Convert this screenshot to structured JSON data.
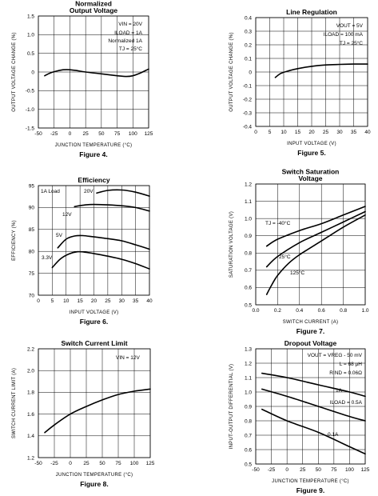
{
  "chart_data": [
    {
      "type": "line",
      "title": "Normalized\nOutput Voltage",
      "figure_label": "Figure 4.",
      "xlabel": "JUNCTION TEMPERATURE (°C)",
      "ylabel": "OUTPUT VOLTAGE CHANGE (%)",
      "xlim": [
        -50,
        125
      ],
      "ylim": [
        -1.5,
        1.5
      ],
      "xticks": [
        -50,
        -25,
        0,
        25,
        50,
        75,
        100,
        125
      ],
      "yticks": [
        -1.5,
        -1.0,
        -0.5,
        0,
        0.5,
        1.0,
        1.5
      ],
      "ytick_labels": [
        "-1.5",
        "-1.0",
        "-0.5",
        "0",
        "0.5",
        "1.0",
        "1.5"
      ],
      "grid": true,
      "annotations": [
        "VIN = 20V",
        "ILOAD = 1A",
        "Normalized 1A",
        "TJ = 25°C"
      ],
      "series": [
        {
          "name": "",
          "x": [
            -40,
            -30,
            -20,
            -10,
            0,
            10,
            25,
            50,
            75,
            90,
            100,
            110,
            125
          ],
          "y": [
            -0.1,
            -0.02,
            0.03,
            0.06,
            0.06,
            0.04,
            0.0,
            -0.05,
            -0.1,
            -0.12,
            -0.1,
            -0.04,
            0.08
          ]
        }
      ]
    },
    {
      "type": "line",
      "title": "Line Regulation",
      "figure_label": "Figure 5.",
      "xlabel": "INPUT VOLTAGE (V)",
      "ylabel": "OUTPUT VOLTAGE CHANGE (%)",
      "xlim": [
        0,
        40
      ],
      "ylim": [
        -0.4,
        0.4
      ],
      "xticks": [
        0,
        5,
        10,
        15,
        20,
        25,
        30,
        35,
        40
      ],
      "yticks": [
        -0.4,
        -0.3,
        -0.2,
        -0.1,
        0,
        0.1,
        0.2,
        0.3,
        0.4
      ],
      "ytick_labels": [
        "-0.4",
        "-0.3",
        "-0.2",
        "-0.1",
        "0",
        "0.1",
        "0.2",
        "0.3",
        "0.4"
      ],
      "grid": true,
      "annotations": [
        "VOUT = 5V",
        "ILOAD = 100 mA",
        "TJ = 25°C"
      ],
      "series": [
        {
          "name": "",
          "x": [
            7,
            9,
            12,
            15,
            20,
            25,
            30,
            35,
            40
          ],
          "y": [
            -0.04,
            -0.01,
            0.01,
            0.025,
            0.042,
            0.052,
            0.056,
            0.058,
            0.058
          ]
        }
      ]
    },
    {
      "type": "line",
      "title": "Efficiency",
      "figure_label": "Figure 6.",
      "xlabel": "INPUT VOLTAGE (V)",
      "ylabel": "EFFICIENCY (%)",
      "xlim": [
        0,
        40
      ],
      "ylim": [
        70,
        95
      ],
      "xticks": [
        0,
        5,
        10,
        15,
        20,
        25,
        30,
        35,
        40
      ],
      "yticks": [
        70,
        75,
        80,
        85,
        90,
        95
      ],
      "ytick_labels": [
        "70",
        "75",
        "80",
        "85",
        "90",
        "95"
      ],
      "grid": true,
      "annotations": [
        "1A Load"
      ],
      "series": [
        {
          "name": "20V",
          "x": [
            21,
            25,
            30,
            35,
            40
          ],
          "y": [
            93.3,
            93.9,
            94.0,
            93.5,
            92.6
          ]
        },
        {
          "name": "12V",
          "x": [
            13,
            17,
            20,
            25,
            30,
            35,
            40
          ],
          "y": [
            90.2,
            90.6,
            90.7,
            90.6,
            90.4,
            90.0,
            89.2
          ]
        },
        {
          "name": "5V",
          "x": [
            7,
            10,
            13,
            16,
            20,
            25,
            30,
            35,
            40
          ],
          "y": [
            80.8,
            82.8,
            83.5,
            83.6,
            83.3,
            82.9,
            82.4,
            81.5,
            80.5
          ]
        },
        {
          "name": "3.3V",
          "x": [
            5,
            8,
            11,
            14,
            17,
            20,
            25,
            30,
            35,
            40
          ],
          "y": [
            76.3,
            78.3,
            79.4,
            79.9,
            79.8,
            79.5,
            78.9,
            78.2,
            77.2,
            76.0
          ]
        }
      ]
    },
    {
      "type": "line",
      "title": "Switch Saturation\nVoltage",
      "figure_label": "Figure 7.",
      "xlabel": "SWITCH CURRENT (A)",
      "ylabel": "SATURATION VOLTAGE (V)",
      "xlim": [
        0,
        1.0
      ],
      "ylim": [
        0.5,
        1.2
      ],
      "xticks": [
        0,
        0.2,
        0.4,
        0.6,
        0.8,
        1.0
      ],
      "xtick_labels": [
        "0.0",
        "0.2",
        "0.4",
        "0.6",
        "0.8",
        "1.0"
      ],
      "yticks": [
        0.5,
        0.6,
        0.7,
        0.8,
        0.9,
        1.0,
        1.1,
        1.2
      ],
      "ytick_labels": [
        "0.5",
        "0.6",
        "0.7",
        "0.8",
        "0.9",
        "1.0",
        "1.1",
        "1.2"
      ],
      "grid": true,
      "series": [
        {
          "name": "TJ = -40°C",
          "x": [
            0.1,
            0.2,
            0.4,
            0.6,
            0.8,
            1.0
          ],
          "y": [
            0.84,
            0.88,
            0.93,
            0.97,
            1.02,
            1.07
          ]
        },
        {
          "name": "25°C",
          "x": [
            0.1,
            0.2,
            0.4,
            0.6,
            0.8,
            1.0
          ],
          "y": [
            0.72,
            0.78,
            0.86,
            0.92,
            0.98,
            1.04
          ]
        },
        {
          "name": "125°C",
          "x": [
            0.1,
            0.15,
            0.2,
            0.3,
            0.4,
            0.6,
            0.8,
            1.0
          ],
          "y": [
            0.56,
            0.62,
            0.67,
            0.74,
            0.79,
            0.87,
            0.95,
            1.02
          ]
        }
      ]
    },
    {
      "type": "line",
      "title": "Switch Current Limit",
      "figure_label": "Figure 8.",
      "xlabel": "JUNCTION TEMPERATURE (°C)",
      "ylabel": "SWITCH CURRENT LIMIT (A)",
      "xlim": [
        -50,
        125
      ],
      "ylim": [
        1.2,
        2.2
      ],
      "xticks": [
        -50,
        -25,
        0,
        25,
        50,
        75,
        100,
        125
      ],
      "yticks": [
        1.2,
        1.4,
        1.6,
        1.8,
        2.0,
        2.2
      ],
      "ytick_labels": [
        "1.2",
        "1.4",
        "1.6",
        "1.8",
        "2.0",
        "2.2"
      ],
      "grid": true,
      "annotations": [
        "VIN = 12V"
      ],
      "series": [
        {
          "name": "",
          "x": [
            -40,
            -25,
            0,
            25,
            50,
            75,
            100,
            125
          ],
          "y": [
            1.43,
            1.5,
            1.6,
            1.67,
            1.73,
            1.78,
            1.81,
            1.83
          ]
        }
      ]
    },
    {
      "type": "line",
      "title": "Dropout Voltage",
      "figure_label": "Figure 9.",
      "xlabel": "JUNCTION TEMPERATURE (°C)",
      "ylabel": "INPUT-OUTPUT DIFFERENTIAL (V)",
      "xlim": [
        -50,
        125
      ],
      "ylim": [
        0.5,
        1.3
      ],
      "xticks": [
        -50,
        -25,
        0,
        25,
        50,
        75,
        100,
        125
      ],
      "yticks": [
        0.5,
        0.6,
        0.7,
        0.8,
        0.9,
        1.0,
        1.1,
        1.2,
        1.3
      ],
      "ytick_labels": [
        "0.5",
        "0.6",
        "0.7",
        "0.8",
        "0.9",
        "1.0",
        "1.1",
        "1.2",
        "1.3"
      ],
      "grid": true,
      "annotations": [
        "VOUT = VREG - 50 mV",
        "L = 68 µH",
        "RIND = 0.06Ω",
        "ILOAD = 0.5A"
      ],
      "series": [
        {
          "name": "1A",
          "x": [
            -40,
            0,
            50,
            100,
            125
          ],
          "y": [
            1.13,
            1.1,
            1.05,
            1.0,
            0.97
          ]
        },
        {
          "name": "",
          "x": [
            -40,
            0,
            50,
            100,
            125
          ],
          "y": [
            1.02,
            0.97,
            0.9,
            0.83,
            0.8
          ]
        },
        {
          "name": "0.1A",
          "x": [
            -40,
            0,
            50,
            100,
            125
          ],
          "y": [
            0.88,
            0.8,
            0.72,
            0.62,
            0.57
          ]
        }
      ]
    }
  ]
}
